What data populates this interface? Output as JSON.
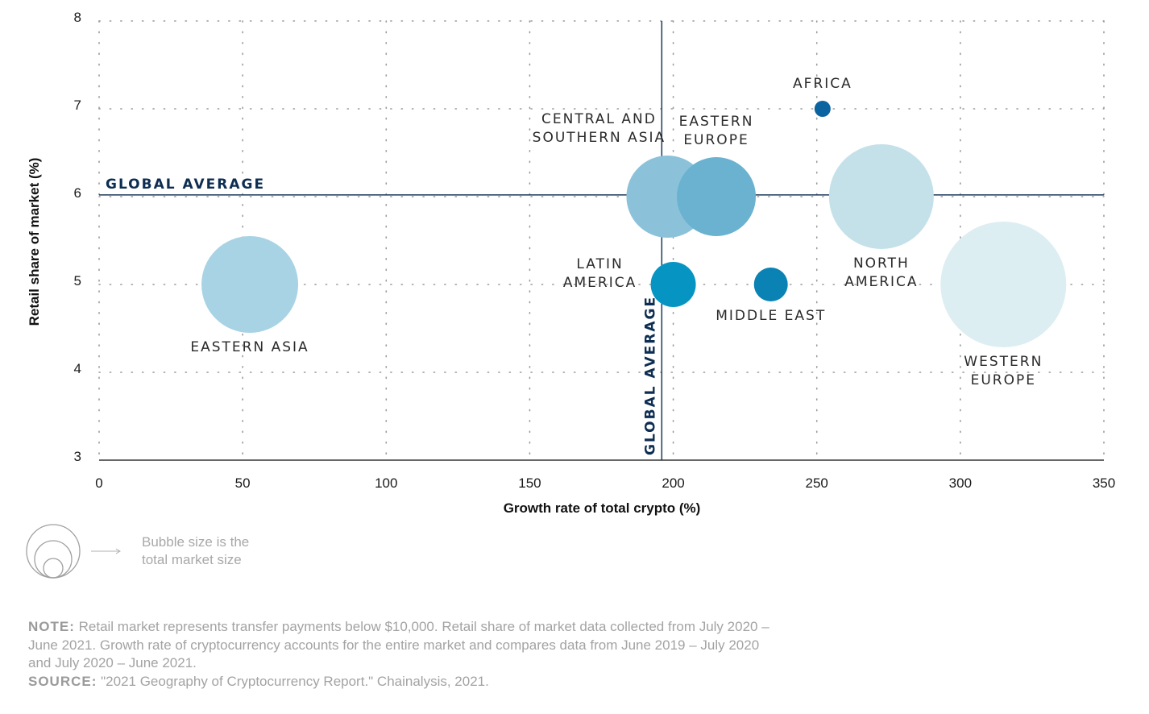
{
  "chart_data": {
    "type": "scatter",
    "subtype": "bubble",
    "xlabel": "Growth rate of total crypto (%)",
    "ylabel": "Retail share of market (%)",
    "xlim": [
      0,
      350
    ],
    "ylim": [
      3,
      8
    ],
    "xticks": [
      0,
      50,
      100,
      150,
      200,
      250,
      300,
      350
    ],
    "yticks": [
      3,
      4,
      5,
      6,
      7,
      8
    ],
    "grid": "dotted",
    "reference_lines": [
      {
        "orientation": "horizontal",
        "value": 6.02,
        "label": "GLOBAL AVERAGE"
      },
      {
        "orientation": "vertical",
        "value": 196,
        "label": "GLOBAL AVERAGE"
      }
    ],
    "points": [
      {
        "name": "EASTERN ASIA",
        "label_lines": [
          "EASTERN ASIA"
        ],
        "x": 52.5,
        "y": 5,
        "size": 60,
        "color": "#a8d3e4",
        "label_pos": "below"
      },
      {
        "name": "CENTRAL AND SOUTHERN ASIA",
        "label_lines": [
          "CENTRAL AND",
          "SOUTHERN ASIA"
        ],
        "x": 198,
        "y": 6,
        "size": 51,
        "color": "#8bc2da",
        "label_pos": "above-left"
      },
      {
        "name": "EASTERN EUROPE",
        "label_lines": [
          "EASTERN",
          "EUROPE"
        ],
        "x": 215,
        "y": 6,
        "size": 49,
        "color": "#6ab2cf",
        "label_pos": "above"
      },
      {
        "name": "AFRICA",
        "label_lines": [
          "AFRICA"
        ],
        "x": 252,
        "y": 7,
        "size": 10,
        "color": "#0b64a0",
        "label_pos": "above"
      },
      {
        "name": "LATIN AMERICA",
        "label_lines": [
          "LATIN",
          "AMERICA"
        ],
        "x": 200,
        "y": 5,
        "size": 28,
        "color": "#0695c2",
        "label_pos": "left"
      },
      {
        "name": "MIDDLE EAST",
        "label_lines": [
          "MIDDLE EAST"
        ],
        "x": 234,
        "y": 5,
        "size": 21,
        "color": "#0a82b4",
        "label_pos": "below"
      },
      {
        "name": "NORTH AMERICA",
        "label_lines": [
          "NORTH",
          "AMERICA"
        ],
        "x": 272.5,
        "y": 6,
        "size": 65,
        "color": "#c4e1ea",
        "label_pos": "below"
      },
      {
        "name": "WESTERN EUROPE",
        "label_lines": [
          "WESTERN",
          "EUROPE"
        ],
        "x": 315,
        "y": 5,
        "size": 78,
        "color": "#ddeef3",
        "label_pos": "below"
      }
    ],
    "legend": {
      "text_lines": [
        "Bubble size is the",
        "total market size"
      ]
    }
  },
  "footer": {
    "note_label": "NOTE:",
    "note_text": " Retail market represents transfer payments below $10,000. Retail share of market data collected from July 2020 – June 2021. Growth rate of cryptocurrency accounts for the entire market and compares data from June 2019 – July 2020 and July 2020 – June 2021.",
    "source_label": "SOURCE:",
    "source_text": " \"2021 Geography of Cryptocurrency Report.\" Chainalysis, 2021."
  },
  "colors": {
    "reference_line": "#1b3a5c",
    "avg_label": "#0d2d52",
    "grid": "#9a9a9a"
  }
}
